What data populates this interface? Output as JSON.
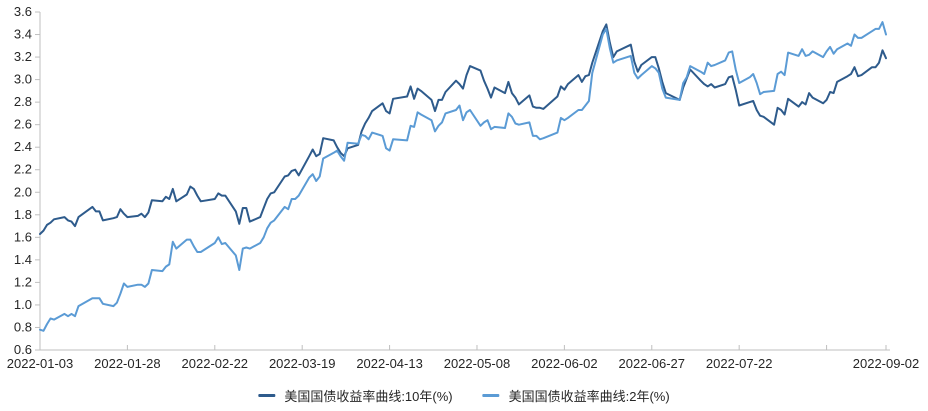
{
  "chart_data": {
    "type": "line",
    "title": "",
    "xlabel": "",
    "ylabel": "",
    "ylim": [
      0.6,
      3.6
    ],
    "y_step": 0.2,
    "y_tick_labels": [
      "0.6",
      "0.8",
      "1.0",
      "1.2",
      "1.4",
      "1.6",
      "1.8",
      "2.0",
      "2.2",
      "2.4",
      "2.6",
      "2.8",
      "3.0",
      "3.2",
      "3.4",
      "3.6"
    ],
    "x_range": [
      "2022-01-03",
      "2022-09-02"
    ],
    "x_ticks": [
      {
        "date": "2022-01-03",
        "label": "2022-01-03"
      },
      {
        "date": "2022-01-28",
        "label": "2022-01-28"
      },
      {
        "date": "2022-02-22",
        "label": "2022-02-22"
      },
      {
        "date": "2022-03-19",
        "label": "2022-03-19"
      },
      {
        "date": "2022-04-13",
        "label": "2022-04-13"
      },
      {
        "date": "2022-05-08",
        "label": "2022-05-08"
      },
      {
        "date": "2022-06-02",
        "label": "2022-06-02"
      },
      {
        "date": "2022-06-27",
        "label": "2022-06-27"
      },
      {
        "date": "2022-07-22",
        "label": "2022-07-22"
      },
      {
        "date": "2022-08-16",
        "label": ""
      },
      {
        "date": "2022-09-02",
        "label": "2022-09-02"
      }
    ],
    "gridlines": false,
    "legend_position": "bottom",
    "dates": [
      "2022-01-03",
      "2022-01-04",
      "2022-01-05",
      "2022-01-06",
      "2022-01-07",
      "2022-01-10",
      "2022-01-11",
      "2022-01-12",
      "2022-01-13",
      "2022-01-14",
      "2022-01-18",
      "2022-01-19",
      "2022-01-20",
      "2022-01-21",
      "2022-01-24",
      "2022-01-25",
      "2022-01-26",
      "2022-01-27",
      "2022-01-28",
      "2022-01-31",
      "2022-02-01",
      "2022-02-02",
      "2022-02-03",
      "2022-02-04",
      "2022-02-07",
      "2022-02-08",
      "2022-02-09",
      "2022-02-10",
      "2022-02-11",
      "2022-02-14",
      "2022-02-15",
      "2022-02-16",
      "2022-02-17",
      "2022-02-18",
      "2022-02-22",
      "2022-02-23",
      "2022-02-24",
      "2022-02-25",
      "2022-02-28",
      "2022-03-01",
      "2022-03-02",
      "2022-03-03",
      "2022-03-04",
      "2022-03-07",
      "2022-03-08",
      "2022-03-09",
      "2022-03-10",
      "2022-03-11",
      "2022-03-14",
      "2022-03-15",
      "2022-03-16",
      "2022-03-17",
      "2022-03-18",
      "2022-03-21",
      "2022-03-22",
      "2022-03-23",
      "2022-03-24",
      "2022-03-25",
      "2022-03-28",
      "2022-03-29",
      "2022-03-30",
      "2022-03-31",
      "2022-04-01",
      "2022-04-04",
      "2022-04-05",
      "2022-04-06",
      "2022-04-07",
      "2022-04-08",
      "2022-04-11",
      "2022-04-12",
      "2022-04-13",
      "2022-04-14",
      "2022-04-18",
      "2022-04-19",
      "2022-04-20",
      "2022-04-21",
      "2022-04-22",
      "2022-04-25",
      "2022-04-26",
      "2022-04-27",
      "2022-04-28",
      "2022-04-29",
      "2022-05-02",
      "2022-05-03",
      "2022-05-04",
      "2022-05-05",
      "2022-05-06",
      "2022-05-09",
      "2022-05-10",
      "2022-05-11",
      "2022-05-12",
      "2022-05-13",
      "2022-05-16",
      "2022-05-17",
      "2022-05-18",
      "2022-05-19",
      "2022-05-20",
      "2022-05-23",
      "2022-05-24",
      "2022-05-25",
      "2022-05-26",
      "2022-05-27",
      "2022-05-31",
      "2022-06-01",
      "2022-06-02",
      "2022-06-03",
      "2022-06-06",
      "2022-06-07",
      "2022-06-08",
      "2022-06-09",
      "2022-06-10",
      "2022-06-13",
      "2022-06-14",
      "2022-06-15",
      "2022-06-16",
      "2022-06-17",
      "2022-06-21",
      "2022-06-22",
      "2022-06-23",
      "2022-06-24",
      "2022-06-27",
      "2022-06-28",
      "2022-06-29",
      "2022-06-30",
      "2022-07-01",
      "2022-07-05",
      "2022-07-06",
      "2022-07-07",
      "2022-07-08",
      "2022-07-11",
      "2022-07-12",
      "2022-07-13",
      "2022-07-14",
      "2022-07-15",
      "2022-07-18",
      "2022-07-19",
      "2022-07-20",
      "2022-07-21",
      "2022-07-22",
      "2022-07-25",
      "2022-07-26",
      "2022-07-27",
      "2022-07-28",
      "2022-07-29",
      "2022-08-01",
      "2022-08-02",
      "2022-08-03",
      "2022-08-04",
      "2022-08-05",
      "2022-08-08",
      "2022-08-09",
      "2022-08-10",
      "2022-08-11",
      "2022-08-12",
      "2022-08-15",
      "2022-08-16",
      "2022-08-17",
      "2022-08-18",
      "2022-08-19",
      "2022-08-22",
      "2022-08-23",
      "2022-08-24",
      "2022-08-25",
      "2022-08-26",
      "2022-08-29",
      "2022-08-30",
      "2022-08-31",
      "2022-09-01",
      "2022-09-02"
    ],
    "series": [
      {
        "name": "美国国债收益率曲线:10年(%)",
        "color": "#2E5B8C",
        "values": [
          1.63,
          1.66,
          1.71,
          1.73,
          1.76,
          1.78,
          1.75,
          1.74,
          1.7,
          1.78,
          1.87,
          1.83,
          1.83,
          1.75,
          1.77,
          1.78,
          1.85,
          1.81,
          1.78,
          1.79,
          1.81,
          1.78,
          1.82,
          1.93,
          1.92,
          1.96,
          1.94,
          2.03,
          1.92,
          1.98,
          2.05,
          2.03,
          1.97,
          1.92,
          1.94,
          1.99,
          1.97,
          1.97,
          1.83,
          1.72,
          1.86,
          1.86,
          1.74,
          1.78,
          1.86,
          1.94,
          1.99,
          2.0,
          2.14,
          2.15,
          2.19,
          2.2,
          2.15,
          2.32,
          2.38,
          2.32,
          2.34,
          2.48,
          2.46,
          2.4,
          2.35,
          2.32,
          2.39,
          2.42,
          2.54,
          2.61,
          2.66,
          2.72,
          2.79,
          2.72,
          2.7,
          2.83,
          2.85,
          2.94,
          2.83,
          2.92,
          2.9,
          2.82,
          2.72,
          2.82,
          2.82,
          2.89,
          2.99,
          2.96,
          2.92,
          3.04,
          3.12,
          3.08,
          2.99,
          2.92,
          2.84,
          2.93,
          2.88,
          2.98,
          2.88,
          2.84,
          2.78,
          2.86,
          2.76,
          2.75,
          2.75,
          2.74,
          2.85,
          2.94,
          2.91,
          2.96,
          3.04,
          2.98,
          3.03,
          3.04,
          3.15,
          3.43,
          3.49,
          3.33,
          3.2,
          3.25,
          3.31,
          3.16,
          3.07,
          3.13,
          3.2,
          3.2,
          3.1,
          2.98,
          2.88,
          2.82,
          2.93,
          3.01,
          3.09,
          2.99,
          2.96,
          2.94,
          2.96,
          2.93,
          2.96,
          3.02,
          3.03,
          2.91,
          2.77,
          2.8,
          2.81,
          2.73,
          2.68,
          2.67,
          2.6,
          2.75,
          2.73,
          2.69,
          2.83,
          2.76,
          2.8,
          2.78,
          2.88,
          2.84,
          2.79,
          2.82,
          2.89,
          2.88,
          2.98,
          3.03,
          3.05,
          3.11,
          3.03,
          3.04,
          3.11,
          3.11,
          3.15,
          3.26,
          3.19
        ]
      },
      {
        "name": "美国国债收益率曲线:2年(%)",
        "color": "#5B9BD5",
        "values": [
          0.78,
          0.77,
          0.83,
          0.88,
          0.87,
          0.92,
          0.9,
          0.92,
          0.9,
          0.99,
          1.06,
          1.06,
          1.06,
          1.01,
          0.99,
          1.02,
          1.1,
          1.19,
          1.16,
          1.18,
          1.18,
          1.16,
          1.19,
          1.31,
          1.3,
          1.34,
          1.36,
          1.56,
          1.5,
          1.58,
          1.58,
          1.52,
          1.47,
          1.47,
          1.55,
          1.6,
          1.54,
          1.55,
          1.44,
          1.31,
          1.5,
          1.51,
          1.5,
          1.55,
          1.6,
          1.68,
          1.73,
          1.75,
          1.87,
          1.85,
          1.94,
          1.94,
          1.97,
          2.13,
          2.16,
          2.1,
          2.14,
          2.3,
          2.35,
          2.37,
          2.32,
          2.28,
          2.44,
          2.43,
          2.51,
          2.5,
          2.47,
          2.53,
          2.5,
          2.39,
          2.37,
          2.47,
          2.46,
          2.59,
          2.58,
          2.71,
          2.69,
          2.64,
          2.54,
          2.59,
          2.62,
          2.7,
          2.73,
          2.77,
          2.64,
          2.71,
          2.73,
          2.59,
          2.62,
          2.64,
          2.56,
          2.58,
          2.57,
          2.7,
          2.67,
          2.61,
          2.6,
          2.62,
          2.5,
          2.5,
          2.47,
          2.48,
          2.53,
          2.66,
          2.64,
          2.66,
          2.73,
          2.73,
          2.77,
          2.81,
          3.06,
          3.4,
          3.45,
          3.28,
          3.15,
          3.17,
          3.21,
          3.06,
          3.01,
          3.04,
          3.12,
          3.1,
          3.06,
          2.92,
          2.84,
          2.82,
          2.97,
          3.02,
          3.12,
          3.07,
          3.05,
          3.15,
          3.12,
          3.13,
          3.17,
          3.24,
          3.25,
          3.09,
          2.97,
          3.02,
          3.05,
          2.97,
          2.87,
          2.89,
          2.9,
          3.05,
          3.07,
          3.04,
          3.24,
          3.21,
          3.27,
          3.21,
          3.22,
          3.25,
          3.2,
          3.25,
          3.29,
          3.23,
          3.27,
          3.32,
          3.3,
          3.4,
          3.37,
          3.37,
          3.43,
          3.45,
          3.45,
          3.51,
          3.4
        ]
      }
    ]
  },
  "style": {
    "background": "#FFFFFF",
    "axis_color": "#BFBFBF",
    "label_color": "#262626",
    "line_width": 2
  }
}
